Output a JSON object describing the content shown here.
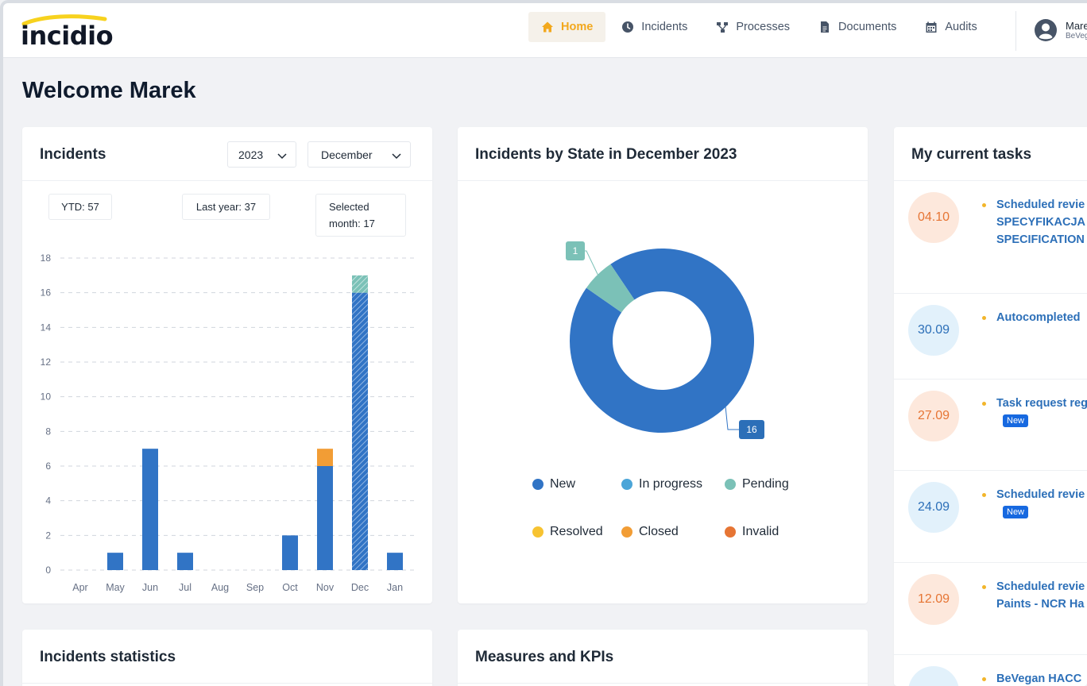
{
  "brand": {
    "name": "incidio"
  },
  "nav": [
    {
      "label": "Home",
      "icon": "home-icon",
      "active": true
    },
    {
      "label": "Incidents",
      "icon": "clock-icon",
      "active": false
    },
    {
      "label": "Processes",
      "icon": "sitemap-icon",
      "active": false
    },
    {
      "label": "Documents",
      "icon": "document-icon",
      "active": false
    },
    {
      "label": "Audits",
      "icon": "calendar-icon",
      "active": false
    }
  ],
  "user": {
    "name": "Mare",
    "org": "BeVeg"
  },
  "welcome": "Welcome Marek",
  "incidents_card": {
    "title": "Incidents",
    "year": "2023",
    "month": "December",
    "ytd": "YTD: 57",
    "last_year": "Last year: 37",
    "selected_month_line1": "Selected",
    "selected_month_line2": "month: 17"
  },
  "state_card": {
    "title": "Incidents by State in December 2023"
  },
  "tasks_card": {
    "title": "My current tasks",
    "tasks": [
      {
        "date": "04.10",
        "tone": "orange",
        "lines": [
          "Scheduled revie",
          "SPECYFIKACJA I",
          "SPECIFICATION"
        ],
        "new": false
      },
      {
        "date": "30.09",
        "tone": "blue",
        "lines": [
          "Autocompleted"
        ],
        "new": false
      },
      {
        "date": "27.09",
        "tone": "orange",
        "lines": [
          "Task request reg"
        ],
        "new": true
      },
      {
        "date": "24.09",
        "tone": "blue",
        "lines": [
          "Scheduled revie"
        ],
        "new": true
      },
      {
        "date": "12.09",
        "tone": "orange",
        "lines": [
          "Scheduled revie",
          "Paints - NCR Ha"
        ],
        "new": false
      },
      {
        "date": "",
        "tone": "blue",
        "lines": [
          "BeVegan HACC"
        ],
        "new": false
      }
    ],
    "new_badge": "New"
  },
  "stats_card": {
    "title": "Incidents statistics"
  },
  "kpi_card": {
    "title": "Measures and KPIs"
  },
  "colors": {
    "accent": "#f2a81d",
    "new": "#3174c5",
    "in_progress": "#4ba5d8",
    "pending": "#7bc1b7",
    "resolved": "#f7c331",
    "closed": "#f29d35",
    "invalid": "#e67534"
  },
  "chart_data": [
    {
      "type": "bar",
      "stacked": true,
      "categories": [
        "Apr",
        "May",
        "Jun",
        "Jul",
        "Aug",
        "Sep",
        "Oct",
        "Nov",
        "Dec",
        "Jan"
      ],
      "series": [
        {
          "name": "New",
          "values": [
            0,
            1,
            7,
            1,
            0,
            0,
            2,
            6,
            16,
            1
          ]
        },
        {
          "name": "Closed",
          "values": [
            0,
            0,
            0,
            0,
            0,
            0,
            0,
            1,
            0,
            0
          ]
        },
        {
          "name": "Pending",
          "values": [
            0,
            0,
            0,
            0,
            0,
            0,
            0,
            0,
            1,
            0
          ]
        }
      ],
      "highlight_category": "Dec",
      "yticks": [
        0,
        2,
        4,
        6,
        8,
        10,
        12,
        14,
        16,
        18
      ],
      "ylim": [
        0,
        18
      ],
      "grid": true
    },
    {
      "type": "pie",
      "donut": true,
      "slices": [
        {
          "name": "New",
          "value": 16,
          "label": "16"
        },
        {
          "name": "Pending",
          "value": 1,
          "label": "1"
        }
      ],
      "legend": [
        "New",
        "In progress",
        "Pending",
        "Resolved",
        "Closed",
        "Invalid"
      ],
      "legend_position": "bottom"
    }
  ]
}
